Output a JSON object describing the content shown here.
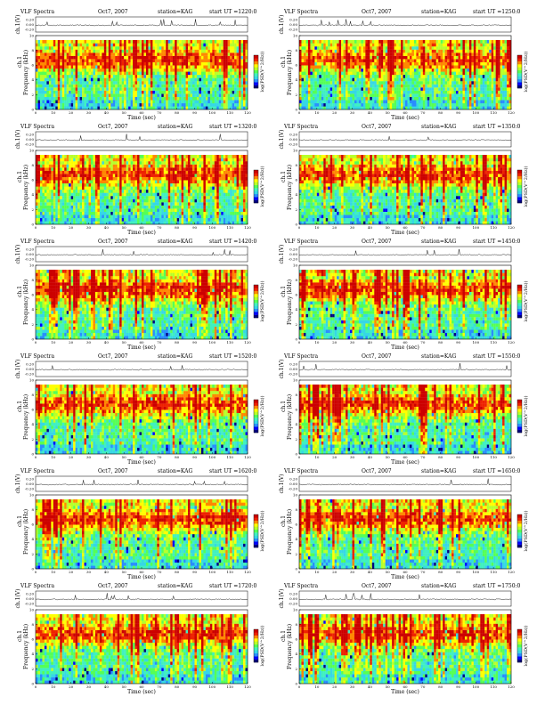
{
  "figure": {
    "title": "VLF Spectra",
    "station_label": "station=KAG",
    "ut_prefix": "start UT =",
    "date": "Oct7, 2007"
  },
  "colors": {
    "colormap": [
      "#000080",
      "#0000ff",
      "#2a8cff",
      "#36d7e6",
      "#40f0c0",
      "#55ff55",
      "#b8ff2a",
      "#ffff00",
      "#ff8800",
      "#ee2200",
      "#cc0000"
    ],
    "trace": "#000000",
    "axis": "#000000"
  },
  "chart_data": [
    {
      "type": "heatmap",
      "title": "VLF Spectra",
      "date": "Oct7, 2007",
      "station": "station=KAG",
      "start_ut": "1220:0",
      "xlabel": "Time (sec)",
      "ylabel": "Frequency (kHz)",
      "trace_label": "ch.1(V)",
      "channel_label": "ch.1",
      "colorbar_label": "log(PSD(V^2/Hz))",
      "xlim": [
        0,
        120
      ],
      "ylim": [
        0,
        10
      ],
      "xticks": [
        0,
        10,
        20,
        30,
        40,
        50,
        60,
        70,
        80,
        90,
        100,
        110,
        120
      ],
      "yticks": [
        0,
        2,
        4,
        6,
        8,
        10
      ],
      "trace_ticks": [
        "0.20",
        "0.00",
        "-0.20"
      ]
    },
    {
      "type": "heatmap",
      "title": "VLF Spectra",
      "date": "Oct7, 2007",
      "station": "station=KAG",
      "start_ut": "1250:0",
      "xlabel": "Time (sec)",
      "ylabel": "Frequency (kHz)",
      "trace_label": "ch.1(V)",
      "channel_label": "ch.1",
      "colorbar_label": "log(PSD(V^2/Hz))",
      "xlim": [
        0,
        120
      ],
      "ylim": [
        0,
        10
      ],
      "xticks": [
        0,
        10,
        20,
        30,
        40,
        50,
        60,
        70,
        80,
        90,
        100,
        110,
        120
      ],
      "yticks": [
        0,
        2,
        4,
        6,
        8,
        10
      ],
      "trace_ticks": [
        "0.20",
        "0.00",
        "-0.20"
      ]
    },
    {
      "type": "heatmap",
      "title": "VLF Spectra",
      "date": "Oct7, 2007",
      "station": "station=KAG",
      "start_ut": "1320:0",
      "xlabel": "Time (sec)",
      "ylabel": "Frequency (kHz)",
      "trace_label": "ch.1(V)",
      "channel_label": "ch.1",
      "colorbar_label": "log(PSD(V^2/Hz))",
      "xlim": [
        0,
        120
      ],
      "ylim": [
        0,
        10
      ],
      "xticks": [
        0,
        10,
        20,
        30,
        40,
        50,
        60,
        70,
        80,
        90,
        100,
        110,
        120
      ],
      "yticks": [
        0,
        2,
        4,
        6,
        8,
        10
      ],
      "trace_ticks": [
        "0.20",
        "0.00",
        "-0.20"
      ]
    },
    {
      "type": "heatmap",
      "title": "VLF Spectra",
      "date": "Oct7, 2007",
      "station": "station=KAG",
      "start_ut": "1350:0",
      "xlabel": "Time (sec)",
      "ylabel": "Frequency (kHz)",
      "trace_label": "ch.1(V)",
      "channel_label": "ch.1",
      "colorbar_label": "log(PSD(V^2/Hz))",
      "xlim": [
        0,
        120
      ],
      "ylim": [
        0,
        10
      ],
      "xticks": [
        0,
        10,
        20,
        30,
        40,
        50,
        60,
        70,
        80,
        90,
        100,
        110,
        120
      ],
      "yticks": [
        0,
        2,
        4,
        6,
        8,
        10
      ],
      "trace_ticks": [
        "0.20",
        "0.00",
        "-0.20"
      ]
    },
    {
      "type": "heatmap",
      "title": "VLF Spectra",
      "date": "Oct7, 2007",
      "station": "station=KAG",
      "start_ut": "1420:0",
      "xlabel": "Time (sec)",
      "ylabel": "Frequency (kHz)",
      "trace_label": "ch.1(V)",
      "channel_label": "ch.1",
      "colorbar_label": "log(PSD(V^2/Hz))",
      "xlim": [
        0,
        120
      ],
      "ylim": [
        0,
        10
      ],
      "xticks": [
        0,
        10,
        20,
        30,
        40,
        50,
        60,
        70,
        80,
        90,
        100,
        110,
        120
      ],
      "yticks": [
        0,
        2,
        4,
        6,
        8,
        10
      ],
      "trace_ticks": [
        "0.20",
        "0.00",
        "-0.20"
      ]
    },
    {
      "type": "heatmap",
      "title": "VLF Spectra",
      "date": "Oct7, 2007",
      "station": "station=KAG",
      "start_ut": "1450:0",
      "xlabel": "Time (sec)",
      "ylabel": "Frequency (kHz)",
      "trace_label": "ch.1(V)",
      "channel_label": "ch.1",
      "colorbar_label": "log(PSD(V^2/Hz))",
      "xlim": [
        0,
        120
      ],
      "ylim": [
        0,
        10
      ],
      "xticks": [
        0,
        10,
        20,
        30,
        40,
        50,
        60,
        70,
        80,
        90,
        100,
        110,
        120
      ],
      "yticks": [
        0,
        2,
        4,
        6,
        8,
        10
      ],
      "trace_ticks": [
        "0.20",
        "0.00",
        "-0.20"
      ]
    },
    {
      "type": "heatmap",
      "title": "VLF Spectra",
      "date": "Oct7, 2007",
      "station": "station=KAG",
      "start_ut": "1520:0",
      "xlabel": "Time (sec)",
      "ylabel": "Frequency (kHz)",
      "trace_label": "ch.1(V)",
      "channel_label": "ch.1",
      "colorbar_label": "log(PSD(V^2/Hz))",
      "xlim": [
        0,
        120
      ],
      "ylim": [
        0,
        10
      ],
      "xticks": [
        0,
        10,
        20,
        30,
        40,
        50,
        60,
        70,
        80,
        90,
        100,
        110,
        120
      ],
      "yticks": [
        0,
        2,
        4,
        6,
        8,
        10
      ],
      "trace_ticks": [
        "0.20",
        "0.00",
        "-0.20"
      ]
    },
    {
      "type": "heatmap",
      "title": "VLF Spectra",
      "date": "Oct7, 2007",
      "station": "station=KAG",
      "start_ut": "1550:0",
      "xlabel": "Time (sec)",
      "ylabel": "Frequency (kHz)",
      "trace_label": "ch.1(V)",
      "channel_label": "ch.1",
      "colorbar_label": "log(PSD(V^2/Hz))",
      "xlim": [
        0,
        120
      ],
      "ylim": [
        0,
        10
      ],
      "xticks": [
        0,
        10,
        20,
        30,
        40,
        50,
        60,
        70,
        80,
        90,
        100,
        110,
        120
      ],
      "yticks": [
        0,
        2,
        4,
        6,
        8,
        10
      ],
      "trace_ticks": [
        "0.20",
        "0.00",
        "-0.20"
      ]
    },
    {
      "type": "heatmap",
      "title": "VLF Spectra",
      "date": "Oct7, 2007",
      "station": "station=KAG",
      "start_ut": "1620:0",
      "xlabel": "Time (sec)",
      "ylabel": "Frequency (kHz)",
      "trace_label": "ch.1(V)",
      "channel_label": "ch.1",
      "colorbar_label": "log(PSD(V^2/Hz))",
      "xlim": [
        0,
        120
      ],
      "ylim": [
        0,
        10
      ],
      "xticks": [
        0,
        10,
        20,
        30,
        40,
        50,
        60,
        70,
        80,
        90,
        100,
        110,
        120
      ],
      "yticks": [
        0,
        2,
        4,
        6,
        8,
        10
      ],
      "trace_ticks": [
        "0.20",
        "0.00",
        "-0.20"
      ]
    },
    {
      "type": "heatmap",
      "title": "VLF Spectra",
      "date": "Oct7, 2007",
      "station": "station=KAG",
      "start_ut": "1650:0",
      "xlabel": "Time (sec)",
      "ylabel": "Frequency (kHz)",
      "trace_label": "ch.1(V)",
      "channel_label": "ch.1",
      "colorbar_label": "log(PSD(V^2/Hz))",
      "xlim": [
        0,
        120
      ],
      "ylim": [
        0,
        10
      ],
      "xticks": [
        0,
        10,
        20,
        30,
        40,
        50,
        60,
        70,
        80,
        90,
        100,
        110,
        120
      ],
      "yticks": [
        0,
        2,
        4,
        6,
        8,
        10
      ],
      "trace_ticks": [
        "0.20",
        "0.00",
        "-0.20"
      ]
    },
    {
      "type": "heatmap",
      "title": "VLF Spectra",
      "date": "Oct7, 2007",
      "station": "station=KAG",
      "start_ut": "1720:0",
      "xlabel": "Time (sec)",
      "ylabel": "Frequency (kHz)",
      "trace_label": "ch.1(V)",
      "channel_label": "ch.1",
      "colorbar_label": "log(PSD(V^2/Hz))",
      "xlim": [
        0,
        120
      ],
      "ylim": [
        0,
        10
      ],
      "xticks": [
        0,
        10,
        20,
        30,
        40,
        50,
        60,
        70,
        80,
        90,
        100,
        110,
        120
      ],
      "yticks": [
        0,
        2,
        4,
        6,
        8,
        10
      ],
      "trace_ticks": [
        "0.20",
        "0.00",
        "-0.20"
      ]
    },
    {
      "type": "heatmap",
      "title": "VLF Spectra",
      "date": "Oct7, 2007",
      "station": "station=KAG",
      "start_ut": "1750:0",
      "xlabel": "Time (sec)",
      "ylabel": "Frequency (kHz)",
      "trace_label": "ch.1(V)",
      "channel_label": "ch.1",
      "colorbar_label": "log(PSD(V^2/Hz))",
      "xlim": [
        0,
        120
      ],
      "ylim": [
        0,
        10
      ],
      "xticks": [
        0,
        10,
        20,
        30,
        40,
        50,
        60,
        70,
        80,
        90,
        100,
        110,
        120
      ],
      "yticks": [
        0,
        2,
        4,
        6,
        8,
        10
      ],
      "trace_ticks": [
        "0.20",
        "0.00",
        "-0.20"
      ]
    }
  ]
}
